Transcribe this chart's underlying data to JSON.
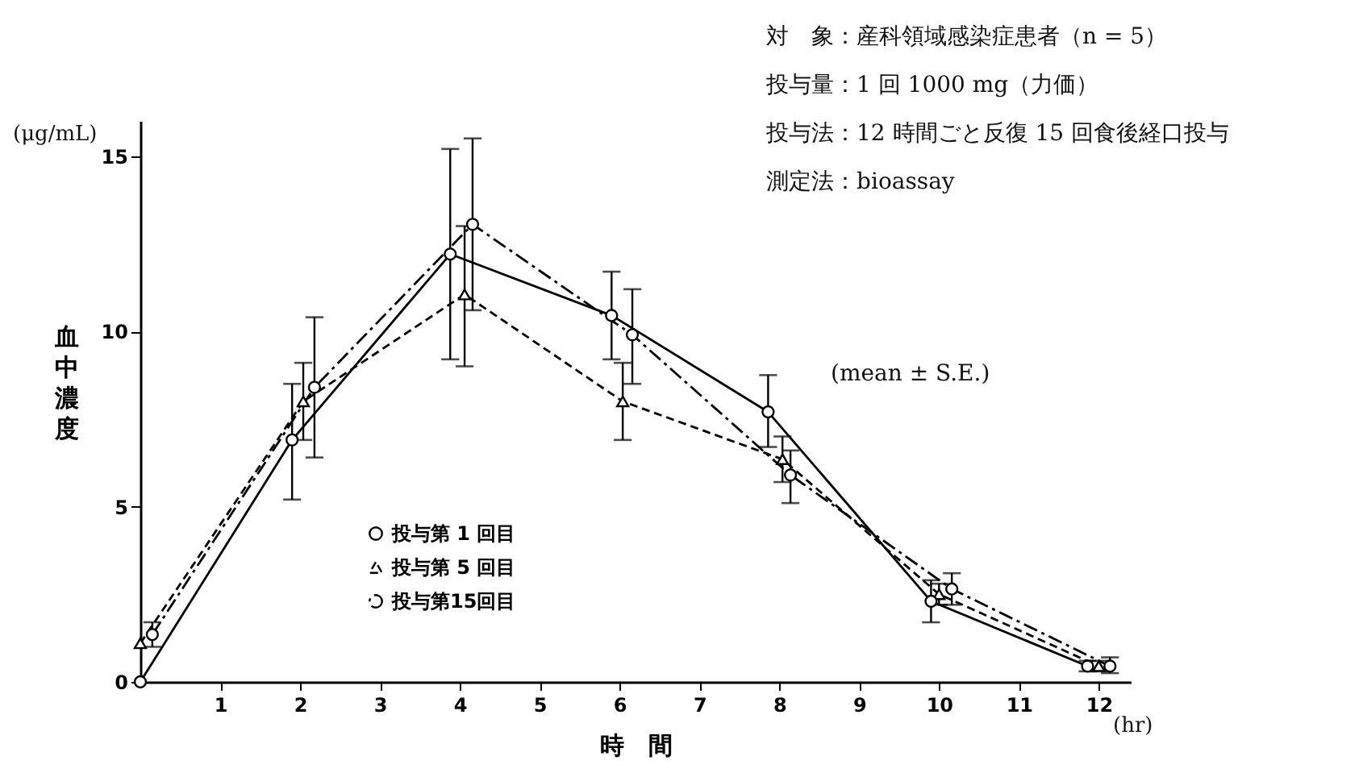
{
  "chart_data": {
    "type": "line",
    "xlabel": "時　間",
    "ylabel": "血中濃度",
    "annotations": [
      "対　象：産科領域感染症患者（n = 5）",
      "投与量：1 回 1000 mg（力価）",
      "投与法：12 時間ごと反復 15 回食後経口投与",
      "測定法：bioassay",
      "(mean ± S.E.)",
      "(μg/mL)",
      "(hr)"
    ],
    "series": [
      {
        "name": "投与第 1 回目",
        "x": [
          0,
          1.9,
          3.88,
          5.9,
          7.86,
          9.9,
          11.86
        ],
        "color": "#000000",
        "marker": "circle",
        "line_style": "solid",
        "values": [
          0,
          6.9,
          12.2,
          10.45,
          7.7,
          2.3,
          0.45
        ],
        "errors": [
          null,
          [
            5.2,
            8.5
          ],
          [
            9.2,
            15.2
          ],
          [
            9.2,
            11.7
          ],
          [
            6.7,
            8.75
          ],
          [
            1.7,
            2.9
          ],
          [
            0.3,
            0.6
          ]
        ]
      },
      {
        "name": "投与第 5 回目",
        "x": [
          0,
          2.04,
          4.06,
          6.04,
          8.04,
          10.0,
          12.0
        ],
        "color": "#000000",
        "marker": "triangle",
        "line_style": "dashed",
        "values": [
          1.1,
          8.0,
          11.05,
          8.0,
          6.35,
          2.5,
          0.45
        ],
        "errors": [
          null,
          [
            6.9,
            9.1
          ],
          [
            9.0,
            13.0
          ],
          [
            6.9,
            9.1
          ],
          [
            5.7,
            7.0
          ],
          [
            2.2,
            2.8
          ],
          [
            0.3,
            0.6
          ]
        ]
      },
      {
        "name": "投与第15回目",
        "x": [
          0.15,
          2.18,
          4.16,
          6.16,
          8.14,
          10.16,
          12.14
        ],
        "color": "#000000",
        "marker": "circle",
        "line_style": "dashdot",
        "values": [
          1.35,
          8.4,
          13.05,
          9.9,
          5.9,
          2.65,
          0.45
        ],
        "errors": [
          [
            1.0,
            1.7
          ],
          [
            6.4,
            10.4
          ],
          [
            10.6,
            15.5
          ],
          [
            8.5,
            11.2
          ],
          [
            5.1,
            6.6
          ],
          [
            2.2,
            3.1
          ],
          [
            0.25,
            0.7
          ]
        ]
      }
    ],
    "xlim": [
      0,
      12.4
    ],
    "ylim": [
      0,
      16
    ],
    "xticks": [
      1,
      2,
      3,
      4,
      5,
      6,
      7,
      8,
      9,
      10,
      11,
      12
    ],
    "yticks": [
      0,
      5,
      10,
      15
    ],
    "grid": false,
    "legend": "bottom left"
  }
}
